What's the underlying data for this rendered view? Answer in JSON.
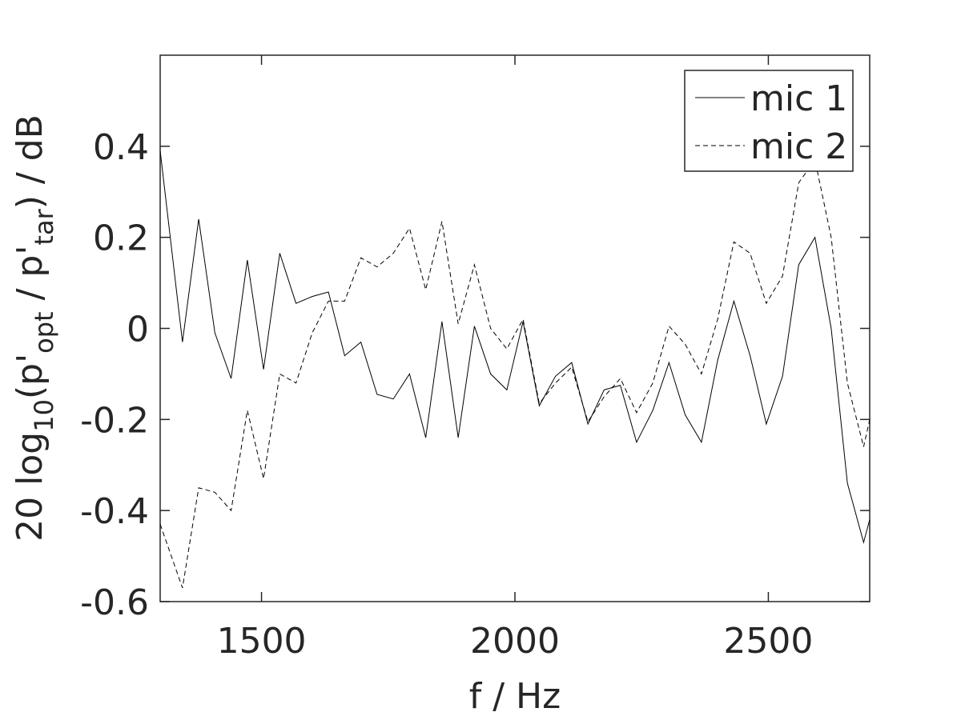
{
  "chart_data": {
    "type": "line",
    "xlabel": "f / Hz",
    "ylabel_parts": [
      "20 log",
      "10",
      "(p'",
      "opt",
      " / p'",
      "tar",
      ") / dB"
    ],
    "x": [
      1300,
      1344,
      1376,
      1408,
      1440,
      1472,
      1504,
      1536,
      1568,
      1600,
      1632,
      1664,
      1696,
      1728,
      1760,
      1792,
      1824,
      1856,
      1888,
      1920,
      1952,
      1984,
      2016,
      2048,
      2080,
      2112,
      2144,
      2176,
      2208,
      2240,
      2272,
      2304,
      2336,
      2368,
      2400,
      2432,
      2464,
      2496,
      2528,
      2560,
      2592,
      2624,
      2656,
      2688,
      2700
    ],
    "series": [
      {
        "name": "mic 1",
        "color": "#000000",
        "dash": "solid",
        "values": [
          0.39,
          -0.03,
          0.24,
          -0.01,
          -0.11,
          0.15,
          -0.09,
          0.165,
          0.055,
          0.07,
          0.08,
          -0.06,
          -0.03,
          -0.145,
          -0.155,
          -0.1,
          -0.24,
          0.015,
          -0.24,
          0.005,
          -0.1,
          -0.135,
          0.015,
          -0.17,
          -0.105,
          -0.075,
          -0.21,
          -0.135,
          -0.125,
          -0.25,
          -0.18,
          -0.075,
          -0.19,
          -0.25,
          -0.07,
          0.06,
          -0.06,
          -0.21,
          -0.105,
          0.14,
          0.2,
          0.0,
          -0.34,
          -0.47,
          -0.42
        ]
      },
      {
        "name": "mic 2",
        "color": "#000000",
        "dash": "dashed",
        "values": [
          -0.43,
          -0.57,
          -0.35,
          -0.36,
          -0.4,
          -0.18,
          -0.33,
          -0.1,
          -0.12,
          -0.01,
          0.06,
          0.06,
          0.155,
          0.135,
          0.165,
          0.22,
          0.085,
          0.235,
          0.01,
          0.14,
          0.0,
          -0.045,
          0.02,
          -0.165,
          -0.12,
          -0.085,
          -0.205,
          -0.15,
          -0.11,
          -0.185,
          -0.12,
          0.005,
          -0.035,
          -0.1,
          0.02,
          0.19,
          0.165,
          0.055,
          0.115,
          0.32,
          0.37,
          0.2,
          -0.12,
          -0.26,
          -0.2
        ]
      }
    ],
    "xlim": [
      1300,
      2700
    ],
    "xticks": [
      1500,
      2000,
      2500
    ],
    "ylim": [
      -0.6,
      0.6
    ],
    "yticks": [
      -0.6,
      -0.4,
      -0.2,
      0,
      0.2,
      0.4
    ],
    "grid": false,
    "legend": "upper right"
  }
}
